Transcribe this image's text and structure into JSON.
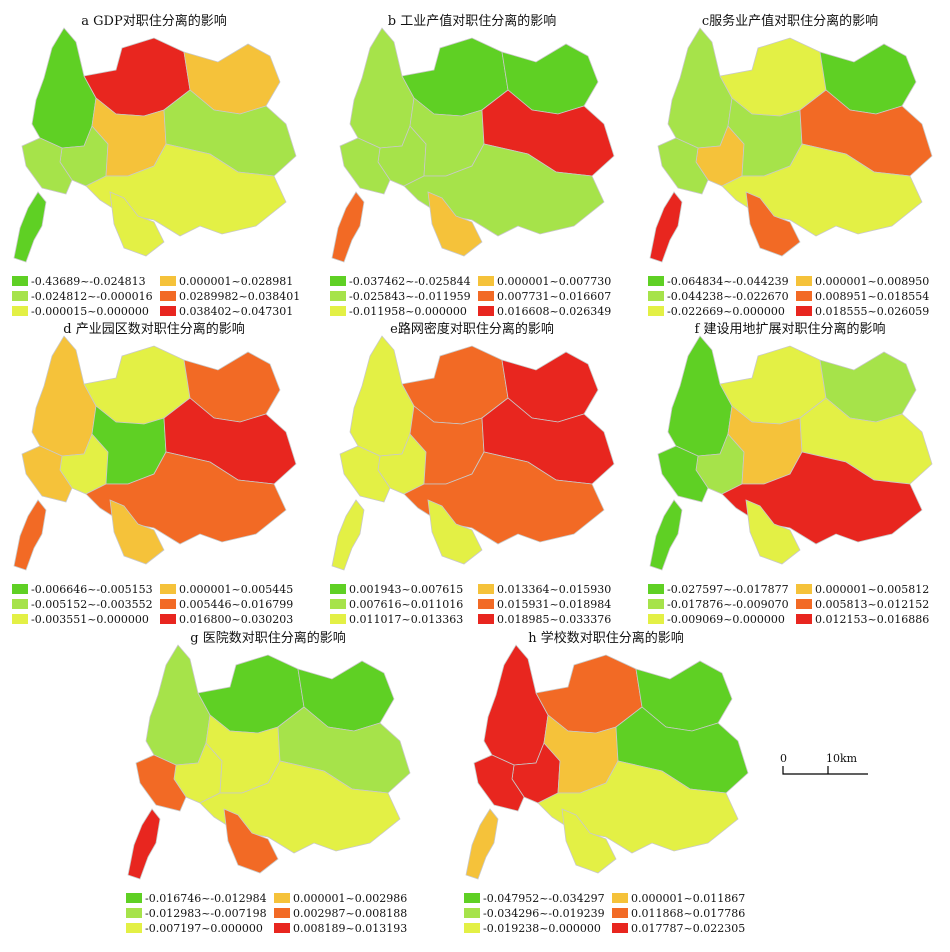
{
  "colors": [
    "#5fd024",
    "#a6e34a",
    "#e3f045",
    "#f5c23a",
    "#f26a25",
    "#e8261f"
  ],
  "panels": [
    {
      "title": "a GDP对职住分离的影响",
      "pattern": "a",
      "legend": [
        "-0.43689~-0.024813",
        "-0.024812~-0.000016",
        "-0.000015~0.000000",
        "0.000001~0.028981",
        "0.0289982~0.038401",
        "0.038402~0.047301"
      ]
    },
    {
      "title": "b 工业产值对职住分离的影响",
      "pattern": "b",
      "legend": [
        "-0.037462~-0.025844",
        "-0.025843~-0.011959",
        "-0.011958~0.000000",
        "0.000001~0.007730",
        "0.007731~0.016607",
        "0.016608~0.026349"
      ]
    },
    {
      "title": "c服务业产值对职住分离的影响",
      "pattern": "c",
      "legend": [
        "-0.064834~-0.044239",
        "-0.044238~-0.022670",
        "-0.022669~0.000000",
        "0.000001~0.008950",
        "0.008951~0.018554",
        "0.018555~0.026059"
      ]
    },
    {
      "title": "d 产业园区数对职住分离的影响",
      "pattern": "d",
      "legend": [
        "-0.006646~-0.005153",
        "-0.005152~-0.003552",
        "-0.003551~0.000000",
        "0.000001~0.005445",
        "0.005446~0.016799",
        "0.016800~0.030203"
      ]
    },
    {
      "title": "e路网密度对职住分离的影响",
      "pattern": "e",
      "legend": [
        "0.001943~0.007615",
        "0.007616~0.011016",
        "0.011017~0.013363",
        "0.013364~0.015930",
        "0.015931~0.018984",
        "0.018985~0.033376"
      ]
    },
    {
      "title": "f 建设用地扩展对职住分离的影响",
      "pattern": "f",
      "legend": [
        "-0.027597~-0.017877",
        "-0.017876~-0.009070",
        "-0.009069~0.000000",
        "0.000001~0.005812",
        "0.005813~0.012152",
        "0.012153~0.016886"
      ]
    },
    {
      "title": "g 医院数对职住分离的影响",
      "pattern": "g",
      "legend": [
        "-0.016746~-0.012984",
        "-0.012983~-0.007198",
        "-0.007197~0.000000",
        "0.000001~0.002986",
        "0.002987~0.008188",
        "0.008189~0.013193"
      ]
    },
    {
      "title": "h 学校数对职住分离的影响",
      "pattern": "h",
      "legend": [
        "-0.047952~-0.034297",
        "-0.034296~-0.019239",
        "-0.019238~0.000000",
        "0.000001~0.011867",
        "0.011868~0.017786",
        "0.017787~0.022305"
      ]
    }
  ],
  "scalebar": {
    "zero": "0",
    "distance": "10km"
  }
}
